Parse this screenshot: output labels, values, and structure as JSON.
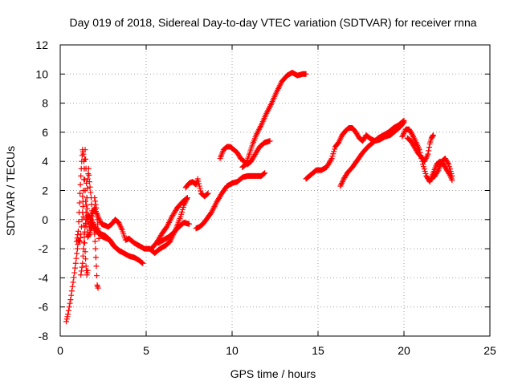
{
  "chart_data": {
    "type": "scatter",
    "title": "Day 019 of 2018, Sidereal Day-to-day VTEC variation (SDTVAR) for receiver rnna",
    "xlabel": "GPS time / hours",
    "ylabel": "SDTVAR / TECUs",
    "xlim": [
      0,
      25
    ],
    "ylim": [
      -8,
      12
    ],
    "x_ticks": [
      "0",
      "5",
      "10",
      "15",
      "20",
      "25"
    ],
    "y_ticks": [
      "-8",
      "-6",
      "-4",
      "-2",
      "0",
      "2",
      "4",
      "6",
      "8",
      "10",
      "12"
    ],
    "grid": true,
    "marker": "+",
    "color": "#ff0000",
    "series": [
      {
        "segments": [
          [
            [
              0.35,
              -7.0
            ],
            [
              0.45,
              -6.5
            ],
            [
              0.6,
              -5.5
            ],
            [
              0.75,
              -4.3
            ],
            [
              0.9,
              -3.0
            ],
            [
              1.0,
              -2.0
            ],
            [
              1.05,
              -1.4
            ],
            [
              1.15,
              -1.5
            ],
            [
              1.2,
              -1.0
            ],
            [
              1.3,
              0.5
            ],
            [
              1.35,
              2.0
            ],
            [
              1.4,
              3.5
            ],
            [
              1.45,
              4.8
            ],
            [
              1.5,
              3.5
            ],
            [
              1.55,
              1.5
            ],
            [
              1.6,
              0.0
            ],
            [
              1.7,
              -0.5
            ],
            [
              1.8,
              0.3
            ],
            [
              2.0,
              0.8
            ],
            [
              2.2,
              0.2
            ],
            [
              2.4,
              -0.3
            ],
            [
              2.6,
              -0.4
            ],
            [
              2.8,
              -0.5
            ],
            [
              3.0,
              -0.3
            ],
            [
              3.2,
              0.0
            ],
            [
              3.4,
              -0.2
            ],
            [
              3.6,
              -0.7
            ],
            [
              3.8,
              -1.4
            ],
            [
              4.0,
              -1.3
            ],
            [
              4.3,
              -1.6
            ],
            [
              4.6,
              -1.8
            ],
            [
              4.9,
              -2.0
            ],
            [
              5.2,
              -2.0
            ],
            [
              5.5,
              -2.3
            ],
            [
              5.8,
              -2.0
            ],
            [
              6.1,
              -1.8
            ],
            [
              6.4,
              -1.5
            ],
            [
              6.7,
              -0.7
            ],
            [
              7.0,
              0.2
            ],
            [
              7.2,
              1.0
            ],
            [
              7.4,
              1.5
            ]
          ],
          [
            [
              0.95,
              -1.5
            ],
            [
              1.05,
              -0.8
            ],
            [
              1.1,
              0.5
            ],
            [
              1.15,
              1.8
            ],
            [
              1.2,
              3.0
            ],
            [
              1.25,
              4.0
            ],
            [
              1.3,
              4.8
            ],
            [
              1.35,
              4.5
            ],
            [
              1.4,
              3.5
            ],
            [
              1.45,
              2.0
            ],
            [
              1.5,
              0.5
            ],
            [
              1.55,
              -0.5
            ],
            [
              1.6,
              -1.2
            ],
            [
              1.7,
              -1.0
            ],
            [
              1.8,
              -0.6
            ],
            [
              1.9,
              -0.4
            ],
            [
              2.1,
              -0.8
            ],
            [
              2.3,
              -1.0
            ],
            [
              2.5,
              -1.2
            ],
            [
              2.7,
              -1.3
            ],
            [
              2.9,
              -1.4
            ],
            [
              3.1,
              -1.8
            ],
            [
              3.4,
              -2.1
            ],
            [
              3.7,
              -2.3
            ],
            [
              4.0,
              -2.5
            ],
            [
              4.3,
              -2.6
            ],
            [
              4.6,
              -2.8
            ],
            [
              4.8,
              -3.0
            ]
          ],
          [
            [
              1.2,
              -3.8
            ],
            [
              1.3,
              -3.0
            ],
            [
              1.35,
              -2.0
            ],
            [
              1.4,
              -1.2
            ],
            [
              1.45,
              -0.5
            ],
            [
              1.5,
              0.0
            ],
            [
              1.6,
              0.3
            ],
            [
              1.7,
              0.2
            ],
            [
              1.8,
              0.0
            ],
            [
              1.9,
              -0.3
            ],
            [
              2.0,
              -0.5
            ],
            [
              2.2,
              -0.8
            ],
            [
              2.4,
              -1.0
            ],
            [
              2.6,
              -1.1
            ],
            [
              2.8,
              -1.3
            ],
            [
              3.0,
              -1.6
            ],
            [
              3.2,
              -1.9
            ],
            [
              3.5,
              -2.2
            ]
          ],
          [
            [
              1.3,
              1.6
            ],
            [
              1.35,
              0.2
            ],
            [
              1.4,
              -1.0
            ],
            [
              1.45,
              -2.2
            ],
            [
              1.5,
              -3.2
            ],
            [
              1.55,
              -3.8
            ],
            [
              1.6,
              -3.5
            ]
          ],
          [
            [
              1.5,
              0.5
            ],
            [
              1.55,
              1.5
            ],
            [
              1.6,
              2.8
            ],
            [
              1.65,
              3.5
            ],
            [
              1.7,
              2.6
            ],
            [
              1.8,
              1.5
            ],
            [
              1.85,
              0.6
            ],
            [
              1.9,
              -0.2
            ],
            [
              2.0,
              -1.0
            ],
            [
              2.05,
              -2.0
            ],
            [
              2.1,
              -3.2
            ],
            [
              2.15,
              -4.5
            ],
            [
              2.2,
              -4.7
            ]
          ],
          [
            [
              2.0,
              1.5
            ],
            [
              2.1,
              0.8
            ],
            [
              2.15,
              0.0
            ],
            [
              2.2,
              -0.6
            ],
            [
              2.25,
              -1.3
            ]
          ],
          [
            [
              5.3,
              -2.0
            ],
            [
              5.6,
              -1.6
            ],
            [
              5.9,
              -1.0
            ],
            [
              6.2,
              -0.5
            ],
            [
              6.5,
              0.2
            ],
            [
              6.8,
              0.8
            ],
            [
              7.1,
              1.2
            ],
            [
              7.4,
              1.5
            ]
          ],
          [
            [
              5.7,
              -1.6
            ],
            [
              6.0,
              -1.4
            ],
            [
              6.3,
              -1.2
            ],
            [
              6.6,
              -0.9
            ],
            [
              6.9,
              -0.5
            ],
            [
              7.2,
              -0.2
            ],
            [
              7.5,
              -0.3
            ]
          ],
          [
            [
              7.3,
              2.2
            ],
            [
              7.5,
              2.5
            ],
            [
              7.7,
              2.6
            ],
            [
              7.9,
              2.4
            ],
            [
              8.0,
              2.8
            ],
            [
              8.1,
              2.3
            ],
            [
              8.2,
              1.8
            ],
            [
              8.4,
              1.6
            ],
            [
              8.6,
              1.8
            ]
          ],
          [
            [
              7.9,
              -0.6
            ],
            [
              8.1,
              -0.5
            ],
            [
              8.3,
              -0.3
            ],
            [
              8.5,
              0.0
            ],
            [
              8.8,
              0.5
            ],
            [
              9.1,
              1.2
            ],
            [
              9.4,
              1.8
            ],
            [
              9.7,
              2.3
            ],
            [
              10.0,
              2.5
            ],
            [
              10.3,
              2.6
            ],
            [
              10.6,
              2.9
            ],
            [
              10.9,
              3.0
            ],
            [
              11.2,
              3.0
            ],
            [
              11.5,
              3.0
            ],
            [
              11.7,
              3.0
            ],
            [
              11.9,
              3.2
            ]
          ],
          [
            [
              9.3,
              4.2
            ],
            [
              9.5,
              4.8
            ],
            [
              9.7,
              5.0
            ],
            [
              9.9,
              5.0
            ],
            [
              10.1,
              4.8
            ],
            [
              10.3,
              4.6
            ],
            [
              10.5,
              4.2
            ],
            [
              10.7,
              4.0
            ],
            [
              10.9,
              3.8
            ],
            [
              11.1,
              4.0
            ],
            [
              11.3,
              4.4
            ],
            [
              11.6,
              5.0
            ],
            [
              11.9,
              5.3
            ],
            [
              12.2,
              5.4
            ]
          ],
          [
            [
              10.6,
              3.6
            ],
            [
              10.8,
              3.8
            ],
            [
              11.0,
              4.5
            ],
            [
              11.2,
              5.2
            ],
            [
              11.4,
              5.8
            ],
            [
              11.7,
              6.5
            ],
            [
              12.0,
              7.3
            ],
            [
              12.3,
              8.0
            ],
            [
              12.6,
              8.8
            ],
            [
              12.9,
              9.5
            ],
            [
              13.2,
              9.9
            ],
            [
              13.5,
              10.1
            ],
            [
              13.8,
              9.9
            ],
            [
              14.1,
              10.0
            ],
            [
              14.3,
              10.0
            ]
          ],
          [
            [
              14.3,
              2.8
            ],
            [
              14.6,
              3.1
            ],
            [
              14.9,
              3.4
            ],
            [
              15.2,
              3.4
            ],
            [
              15.5,
              3.6
            ],
            [
              15.8,
              4.2
            ],
            [
              16.0,
              5.0
            ],
            [
              16.2,
              5.3
            ],
            [
              16.4,
              5.8
            ],
            [
              16.6,
              6.1
            ],
            [
              16.8,
              6.3
            ],
            [
              17.0,
              6.3
            ],
            [
              17.2,
              6.0
            ],
            [
              17.4,
              5.6
            ],
            [
              17.6,
              5.4
            ],
            [
              17.8,
              5.8
            ],
            [
              18.0,
              5.6
            ],
            [
              18.3,
              5.4
            ],
            [
              18.6,
              5.5
            ],
            [
              18.9,
              5.7
            ],
            [
              19.2,
              5.8
            ],
            [
              19.5,
              6.1
            ],
            [
              19.8,
              6.4
            ],
            [
              20.0,
              6.7
            ]
          ],
          [
            [
              16.3,
              2.3
            ],
            [
              16.5,
              2.8
            ],
            [
              16.7,
              3.2
            ],
            [
              17.0,
              3.6
            ],
            [
              17.3,
              4.1
            ],
            [
              17.6,
              4.6
            ],
            [
              17.9,
              5.0
            ],
            [
              18.2,
              5.3
            ],
            [
              18.5,
              5.6
            ],
            [
              18.8,
              5.8
            ],
            [
              19.1,
              6.0
            ],
            [
              19.4,
              6.3
            ],
            [
              19.7,
              6.5
            ],
            [
              20.0,
              6.8
            ]
          ],
          [
            [
              19.9,
              5.7
            ],
            [
              20.1,
              6.2
            ],
            [
              20.3,
              6.2
            ],
            [
              20.5,
              5.8
            ],
            [
              20.7,
              5.3
            ],
            [
              20.9,
              4.8
            ],
            [
              21.1,
              3.8
            ],
            [
              21.3,
              3.0
            ],
            [
              21.5,
              2.6
            ],
            [
              21.7,
              3.2
            ],
            [
              21.9,
              3.8
            ],
            [
              22.1,
              4.0
            ],
            [
              22.3,
              3.8
            ],
            [
              22.5,
              3.4
            ],
            [
              22.7,
              3.0
            ],
            [
              22.8,
              2.7
            ]
          ],
          [
            [
              20.2,
              5.6
            ],
            [
              20.4,
              5.4
            ],
            [
              20.6,
              5.0
            ],
            [
              20.8,
              4.6
            ],
            [
              21.0,
              4.3
            ],
            [
              21.2,
              4.0
            ],
            [
              21.4,
              4.5
            ],
            [
              21.5,
              5.2
            ],
            [
              21.6,
              5.6
            ],
            [
              21.7,
              5.8
            ]
          ],
          [
            [
              21.6,
              2.8
            ],
            [
              21.8,
              3.0
            ],
            [
              22.0,
              3.4
            ],
            [
              22.2,
              4.0
            ],
            [
              22.4,
              4.2
            ],
            [
              22.6,
              3.8
            ],
            [
              22.8,
              3.0
            ]
          ]
        ]
      }
    ]
  }
}
